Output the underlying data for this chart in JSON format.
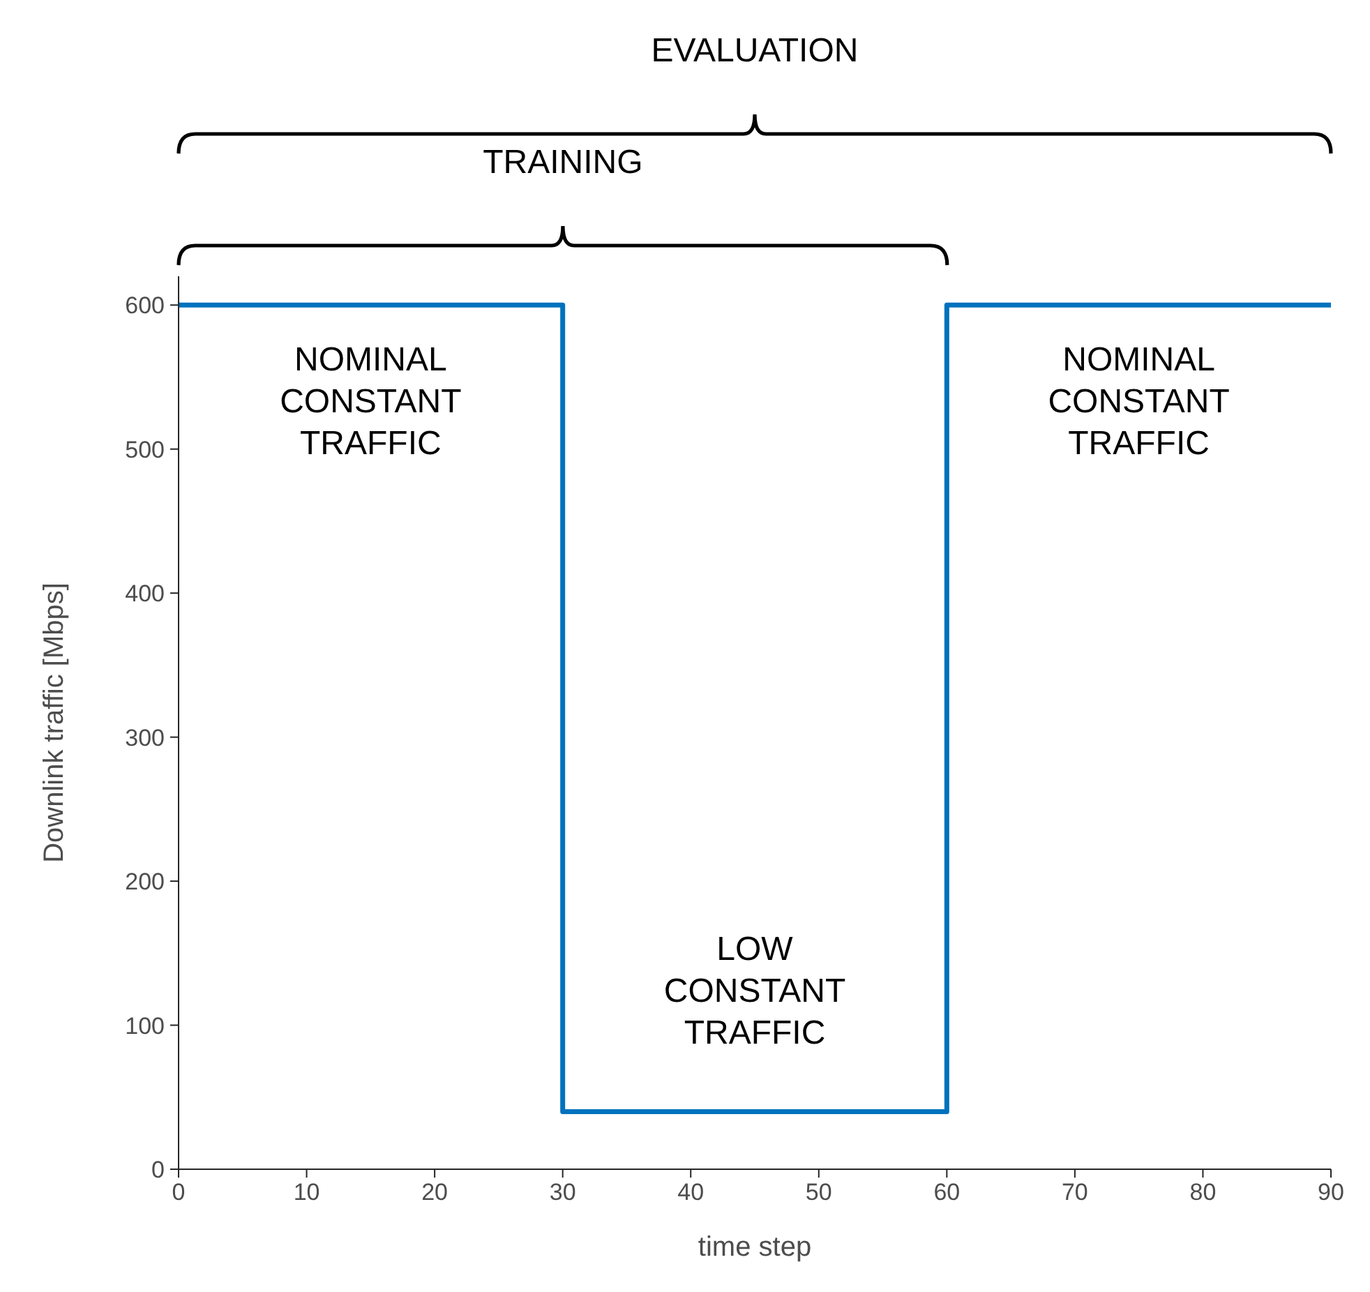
{
  "chart_data": {
    "type": "line",
    "xlabel": "time step",
    "ylabel": "Downlink traffic [Mbps]",
    "x": [
      0,
      30,
      30,
      60,
      60,
      90
    ],
    "series": [
      {
        "color": "#0072bd",
        "values": [
          600,
          600,
          40,
          40,
          600,
          600
        ]
      }
    ],
    "xlim": [
      0,
      90
    ],
    "xticks": [
      0,
      10,
      20,
      30,
      40,
      50,
      60,
      70,
      80,
      90
    ],
    "ylim": [
      0,
      620
    ],
    "yticks": [
      0,
      100,
      200,
      300,
      400,
      500,
      600
    ],
    "grid": false,
    "legend": false,
    "marker": "none",
    "line_style": "solid",
    "annotations": [
      "EVALUATION",
      "TRAINING",
      "NOMINAL CONSTANT TRAFFIC",
      "LOW CONSTANT TRAFFIC",
      "NOMINAL CONSTANT TRAFFIC"
    ]
  }
}
